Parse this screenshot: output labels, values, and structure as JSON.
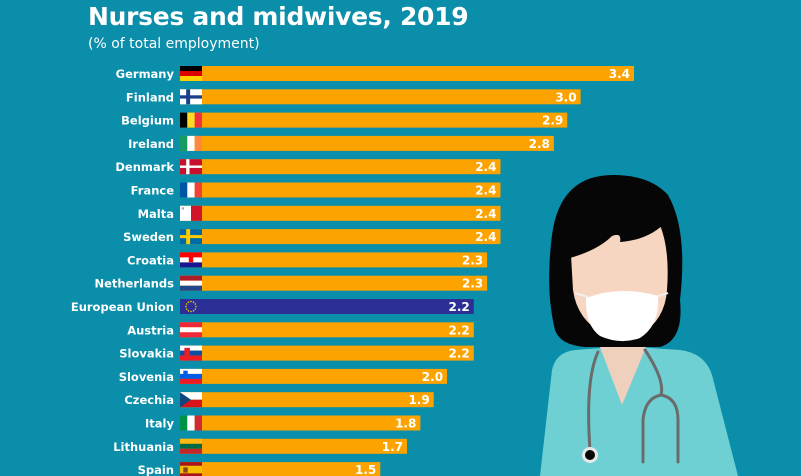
{
  "chart_data": {
    "type": "bar",
    "orientation": "horizontal",
    "title": "Nurses and midwives, 2019",
    "subtitle": "(% of total employment)",
    "xlabel": "",
    "ylabel": "",
    "xlim": [
      0,
      3.4
    ],
    "grid": false,
    "categories": [
      "Germany",
      "Finland",
      "Belgium",
      "Ireland",
      "Denmark",
      "France",
      "Malta",
      "Sweden",
      "Croatia",
      "Netherlands",
      "European Union",
      "Austria",
      "Slovakia",
      "Slovenia",
      "Czechia",
      "Italy",
      "Lithuania",
      "Spain"
    ],
    "values": [
      3.4,
      3.0,
      2.9,
      2.8,
      2.4,
      2.4,
      2.4,
      2.4,
      2.3,
      2.3,
      2.2,
      2.2,
      2.2,
      2.0,
      1.9,
      1.8,
      1.7,
      1.5
    ],
    "value_labels": [
      "3.4",
      "3.0",
      "2.9",
      "2.8",
      "2.4",
      "2.4",
      "2.4",
      "2.4",
      "2.3",
      "2.3",
      "2.2",
      "2.2",
      "2.2",
      "2.0",
      "1.9",
      "1.8",
      "1.7",
      "1.5"
    ],
    "flags": [
      "germany-flag",
      "finland-flag",
      "belgium-flag",
      "ireland-flag",
      "denmark-flag",
      "france-flag",
      "malta-flag",
      "sweden-flag",
      "croatia-flag",
      "netherlands-flag",
      "eu-flag",
      "austria-flag",
      "slovakia-flag",
      "slovenia-flag",
      "czechia-flag",
      "italy-flag",
      "lithuania-flag",
      "spain-flag"
    ],
    "highlight": "European Union"
  },
  "colors": {
    "background": "#0a8eaa",
    "bar": "#fca300",
    "highlight_bar": "#2b2f96",
    "text": "#ffffff"
  },
  "illustration": "nurse-with-mask-and-stethoscope"
}
